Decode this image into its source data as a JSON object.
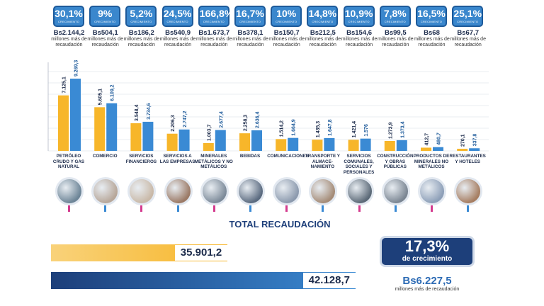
{
  "chart_data": {
    "type": "bar",
    "categories": [
      "PETRÓLEO CRUDO Y GAS NATURAL",
      "COMERCIO",
      "SERVICIOS FINANCIEROS",
      "SERVICIOS A LAS EMPRESAS",
      "MINERALES METÁLICOS Y NO METÁLICOS",
      "BEBIDAS",
      "COMUNICACIONES",
      "TRANSPORTE Y ALMACE-NAMIENTO",
      "SERVICIOS COMUNALES, SOCIALES Y PERSONALES",
      "CONSTRUCCIÓN Y OBRAS PÚBLICAS",
      "PRODUCTOS DE MINERALES NO METÁLICOS",
      "RESTAURANTES Y HOTELES"
    ],
    "series": [
      {
        "color": "#f7b62a",
        "values": [
          7125.1,
          5605.1,
          3548.4,
          2206.3,
          1003.7,
          2258.3,
          1514.2,
          1435.3,
          1421.4,
          1273.9,
          412.7,
          270.1
        ],
        "labels": [
          "7.125,1",
          "5.605,1",
          "3.548,4",
          "2.206,3",
          "1.003,7",
          "2.258,3",
          "1.514,2",
          "1.435,3",
          "1.421,4",
          "1.273,9",
          "412,7",
          "270,1"
        ]
      },
      {
        "color": "#3a8ad4",
        "values": [
          9269.3,
          6109.2,
          3734.6,
          2747.2,
          2677.4,
          2636.4,
          1664.9,
          1647.8,
          1576,
          1373.4,
          480.7,
          337.8
        ],
        "labels": [
          "9.269,3",
          "6.109,2",
          "3.734,6",
          "2.747,2",
          "2.677,4",
          "2.636,4",
          "1.664,9",
          "1.647,8",
          "1.576",
          "1.373,4",
          "480,7",
          "337,8"
        ]
      }
    ],
    "growth_pct": [
      "30,1%",
      "9%",
      "5,2%",
      "24,5%",
      "166,8%",
      "16,7%",
      "10%",
      "14,8%",
      "10,9%",
      "7,8%",
      "16,5%",
      "25,1%"
    ],
    "growth_amount": [
      "Bs2.144,2",
      "Bs504,1",
      "Bs186,2",
      "Bs540,9",
      "Bs1.673,7",
      "Bs378,1",
      "Bs150,7",
      "Bs212,5",
      "Bs154,6",
      "Bs99,5",
      "Bs68",
      "Bs67,7"
    ],
    "ylim": [
      0,
      10000
    ],
    "grid": true
  },
  "labels": {
    "badge_sub": "CRECIMIENTO",
    "amount_sub": "millones más de recaudación"
  },
  "total": {
    "title": "TOTAL RECAUDACIÓN",
    "values": [
      35901.2,
      42128.7
    ],
    "labels": [
      "35.901,2",
      "42.128,7"
    ],
    "growth_pct": "17,3%",
    "growth_label": "de crecimiento",
    "delta": "Bs6.227,5",
    "delta_label": "millones más de recaudación"
  },
  "colors": {
    "prev": "#f7b62a",
    "curr": "#3a8ad4",
    "navy": "#1d3f7a"
  },
  "icons": [
    "oil-field-photo",
    "retail-store-photo",
    "bank-office-photo",
    "business-meeting-photo",
    "mining-plant-photo",
    "bottling-plant-photo",
    "telecom-tower-photo",
    "cargo-truck-photo",
    "community-service-photo",
    "construction-site-photo",
    "cement-plant-photo",
    "restaurant-photo"
  ]
}
